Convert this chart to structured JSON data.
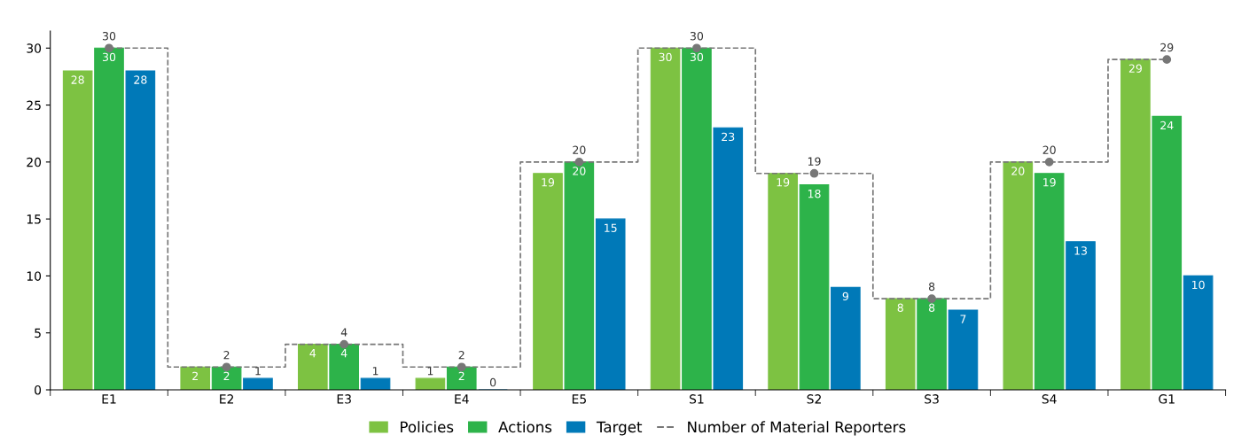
{
  "chart_data": {
    "type": "bar",
    "categories": [
      "E1",
      "E2",
      "E3",
      "E4",
      "E5",
      "S1",
      "S2",
      "S3",
      "S4",
      "G1"
    ],
    "series": [
      {
        "name": "Policies",
        "color": "#7dc242",
        "values": [
          28,
          2,
          4,
          1,
          19,
          30,
          19,
          8,
          20,
          29
        ]
      },
      {
        "name": "Actions",
        "color": "#2db34a",
        "values": [
          30,
          2,
          4,
          2,
          20,
          30,
          18,
          8,
          19,
          24
        ]
      },
      {
        "name": "Target",
        "color": "#0079b8",
        "values": [
          28,
          1,
          1,
          0,
          15,
          23,
          9,
          7,
          13,
          10
        ]
      },
      {
        "name": "Number of Material Reporters",
        "type": "step",
        "color": "#777777",
        "marker": "circle",
        "line_style": "dashed",
        "values": [
          30,
          2,
          4,
          2,
          20,
          30,
          19,
          8,
          20,
          29
        ]
      }
    ],
    "ylim": [
      0,
      31.5
    ],
    "yticks": [
      0,
      5,
      10,
      15,
      20,
      25,
      30
    ],
    "grid": false,
    "legend": "bottom",
    "data_labels": true
  }
}
